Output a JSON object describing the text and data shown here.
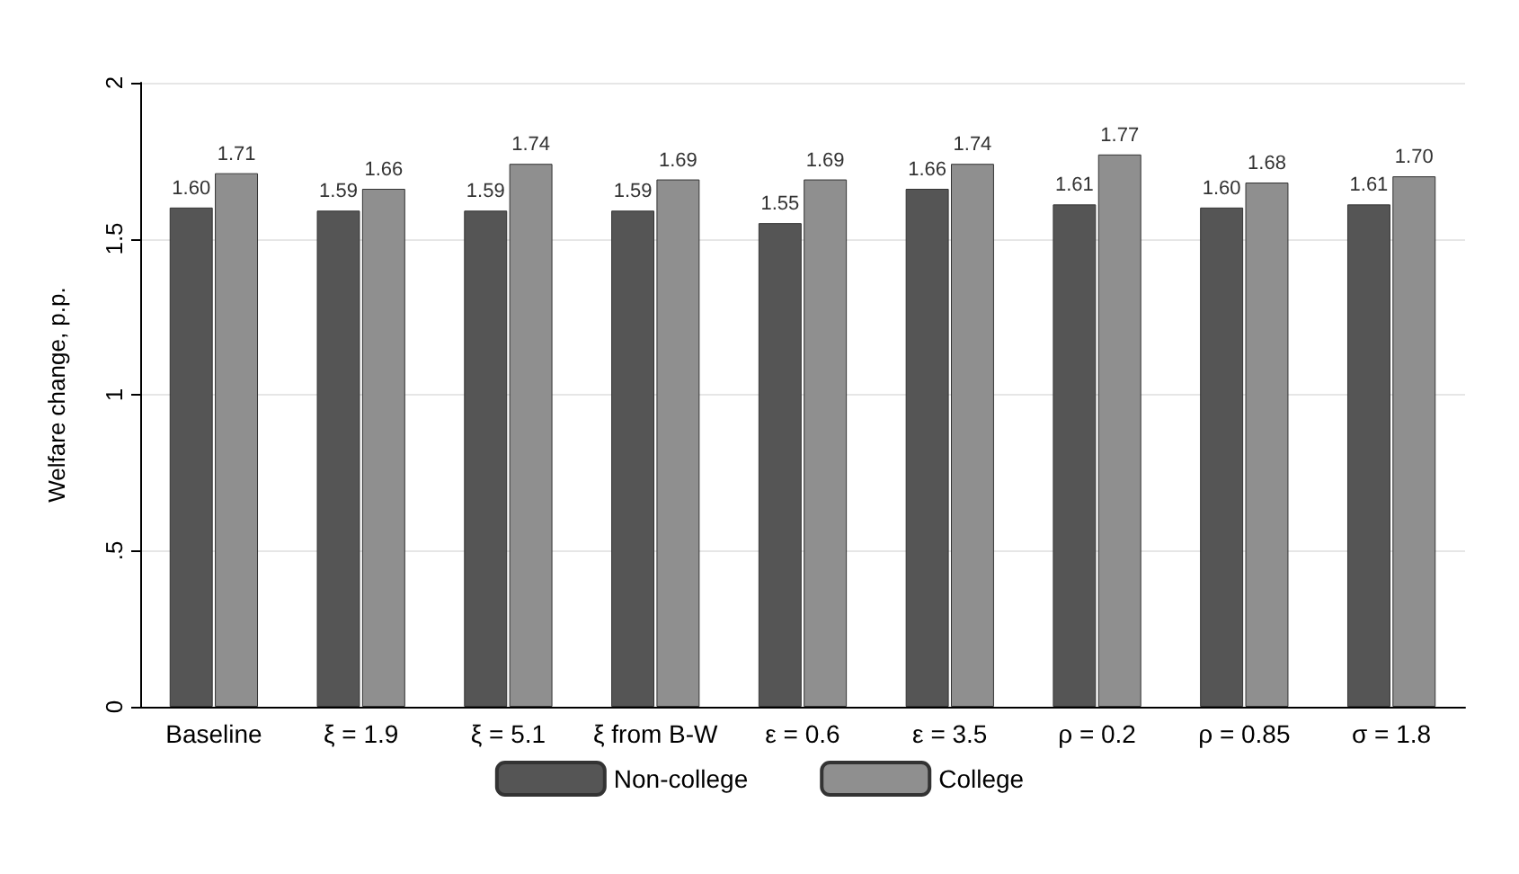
{
  "chart_data": {
    "type": "bar",
    "ylabel": "Welfare change, p.p.",
    "categories": [
      "Baseline",
      "ξ = 1.9",
      "ξ = 5.1",
      "ξ from B-W",
      "ε = 0.6",
      "ε = 3.5",
      "ρ = 0.2",
      "ρ = 0.85",
      "σ = 1.8"
    ],
    "series": [
      {
        "name": "Non-college",
        "color": "#555555",
        "values": [
          1.6,
          1.59,
          1.59,
          1.59,
          1.55,
          1.66,
          1.61,
          1.6,
          1.61
        ],
        "value_labels": [
          "1.60",
          "1.59",
          "1.59",
          "1.59",
          "1.55",
          "1.66",
          "1.61",
          "1.60",
          "1.61"
        ]
      },
      {
        "name": "College",
        "color": "#8f8f8f",
        "values": [
          1.71,
          1.66,
          1.74,
          1.69,
          1.69,
          1.74,
          1.77,
          1.68,
          1.7
        ],
        "value_labels": [
          "1.71",
          "1.66",
          "1.74",
          "1.69",
          "1.69",
          "1.74",
          "1.77",
          "1.68",
          "1.70"
        ]
      }
    ],
    "ylim": [
      0,
      2
    ],
    "yticks": [
      0,
      {
        "value": 0.5,
        "label": ".5"
      },
      1,
      1.5,
      2
    ],
    "grid": "y",
    "legend": "bottom"
  }
}
